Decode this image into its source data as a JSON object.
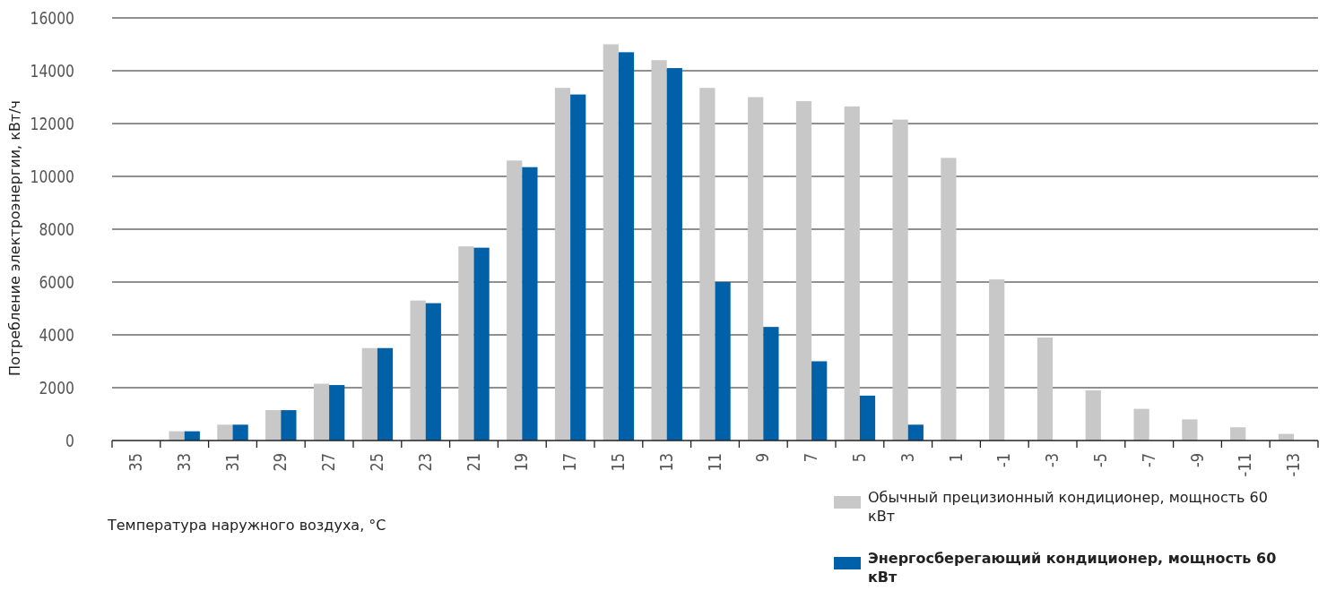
{
  "chart_data": {
    "type": "bar",
    "xlabel": "Температура наружного воздуха, °C",
    "ylabel": "Потребление электроэнергии, кВт/ч",
    "categories": [
      "35",
      "33",
      "31",
      "29",
      "27",
      "25",
      "23",
      "21",
      "19",
      "17",
      "15",
      "13",
      "11",
      "9",
      "7",
      "5",
      "3",
      "1",
      "-1",
      "-3",
      "-5",
      "-7",
      "-9",
      "-11",
      "-13"
    ],
    "series": [
      {
        "name": "Обычный прецизионный кондиционер, мощность 60 кВт",
        "color": "#c8c8c8",
        "values": [
          0,
          350,
          600,
          1150,
          2150,
          3500,
          5300,
          7350,
          10600,
          13350,
          15000,
          14400,
          13350,
          13000,
          12850,
          12650,
          12150,
          10700,
          6100,
          3900,
          1900,
          1200,
          800,
          500,
          250
        ]
      },
      {
        "name": "Энергосберегающий кондиционер, мощность 60 кВт",
        "color": "#0060a8",
        "values": [
          0,
          350,
          600,
          1150,
          2100,
          3500,
          5200,
          7300,
          10350,
          13100,
          14700,
          14100,
          6000,
          4300,
          3000,
          1700,
          600,
          0,
          0,
          0,
          0,
          0,
          0,
          0,
          0
        ]
      }
    ],
    "ylim": [
      0,
      16000
    ],
    "yticks": [
      0,
      2000,
      4000,
      6000,
      8000,
      10000,
      12000,
      14000,
      16000
    ],
    "grid": "y",
    "legend": "bottom right"
  }
}
